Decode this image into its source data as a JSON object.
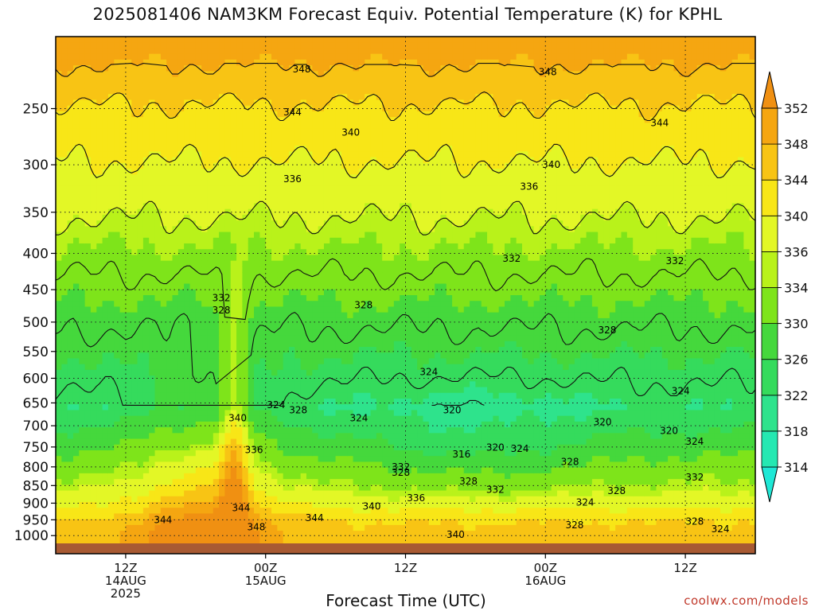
{
  "chart_data": {
    "type": "heatmap",
    "title": "2025081406 NAM3KM Forecast Equiv. Potential Temperature (K) for KPHL",
    "xlabel": "Forecast Time (UTC)",
    "ylabel": "",
    "credit": "coolwx.com/models",
    "x_ticks": [
      {
        "hours": 6,
        "lines": [
          "12Z",
          "14AUG",
          "2025"
        ]
      },
      {
        "hours": 18,
        "lines": [
          "00Z",
          "15AUG"
        ]
      },
      {
        "hours": 30,
        "lines": [
          "12Z"
        ]
      },
      {
        "hours": 42,
        "lines": [
          "00Z",
          "16AUG"
        ]
      },
      {
        "hours": 54,
        "lines": [
          "12Z"
        ]
      }
    ],
    "xlim": [
      0,
      60
    ],
    "y_ticks": [
      250,
      300,
      350,
      400,
      450,
      500,
      550,
      600,
      650,
      700,
      750,
      800,
      850,
      900,
      950,
      1000
    ],
    "ylim": [
      1015,
      210
    ],
    "y_scale": "log-pressure",
    "colorbar": {
      "ticks": [
        314,
        318,
        322,
        326,
        330,
        334,
        336,
        340,
        344,
        348,
        352
      ],
      "colors": [
        "#1fe8d6",
        "#25e8b2",
        "#2ee38c",
        "#35db5c",
        "#45d83c",
        "#7ee41a",
        "#b9f21a",
        "#e3f726",
        "#f8e617",
        "#f8c414",
        "#f5a611",
        "#f09012"
      ],
      "extend": "both"
    },
    "contour_labels": [
      {
        "t": 21.1,
        "p": 220,
        "v": "348"
      },
      {
        "t": 42.2,
        "p": 222,
        "v": "348"
      },
      {
        "t": 20.3,
        "p": 253,
        "v": "344"
      },
      {
        "t": 51.8,
        "p": 262,
        "v": "344"
      },
      {
        "t": 25.3,
        "p": 270,
        "v": "340"
      },
      {
        "t": 42.5,
        "p": 300,
        "v": "340"
      },
      {
        "t": 20.3,
        "p": 314,
        "v": "336"
      },
      {
        "t": 40.6,
        "p": 322,
        "v": "336"
      },
      {
        "t": 39.1,
        "p": 407,
        "v": "332"
      },
      {
        "t": 53.1,
        "p": 410,
        "v": "332"
      },
      {
        "t": 14.2,
        "p": 462,
        "v": "332"
      },
      {
        "t": 14.2,
        "p": 481,
        "v": "328"
      },
      {
        "t": 26.4,
        "p": 473,
        "v": "328"
      },
      {
        "t": 47.3,
        "p": 513,
        "v": "328"
      },
      {
        "t": 32.0,
        "p": 588,
        "v": "324"
      },
      {
        "t": 53.6,
        "p": 625,
        "v": "324"
      },
      {
        "t": 18.9,
        "p": 654,
        "v": "324"
      },
      {
        "t": 20.8,
        "p": 665,
        "v": "328"
      },
      {
        "t": 26.0,
        "p": 683,
        "v": "324"
      },
      {
        "t": 34.0,
        "p": 665,
        "v": "320"
      },
      {
        "t": 46.9,
        "p": 692,
        "v": "320"
      },
      {
        "t": 52.6,
        "p": 712,
        "v": "320"
      },
      {
        "t": 54.8,
        "p": 737,
        "v": "324"
      },
      {
        "t": 15.6,
        "p": 683,
        "v": "340"
      },
      {
        "t": 17.0,
        "p": 757,
        "v": "336"
      },
      {
        "t": 34.8,
        "p": 768,
        "v": "316"
      },
      {
        "t": 37.7,
        "p": 751,
        "v": "320"
      },
      {
        "t": 39.8,
        "p": 754,
        "v": "324"
      },
      {
        "t": 44.1,
        "p": 787,
        "v": "328"
      },
      {
        "t": 29.6,
        "p": 800,
        "v": "332"
      },
      {
        "t": 29.6,
        "p": 815,
        "v": "328"
      },
      {
        "t": 35.4,
        "p": 838,
        "v": "328"
      },
      {
        "t": 37.7,
        "p": 862,
        "v": "332"
      },
      {
        "t": 54.8,
        "p": 828,
        "v": "332"
      },
      {
        "t": 48.1,
        "p": 865,
        "v": "328"
      },
      {
        "t": 30.9,
        "p": 885,
        "v": "336"
      },
      {
        "t": 45.4,
        "p": 898,
        "v": "324"
      },
      {
        "t": 15.9,
        "p": 914,
        "v": "344"
      },
      {
        "t": 27.1,
        "p": 909,
        "v": "340"
      },
      {
        "t": 22.2,
        "p": 944,
        "v": "344"
      },
      {
        "t": 9.2,
        "p": 950,
        "v": "344"
      },
      {
        "t": 44.5,
        "p": 966,
        "v": "328"
      },
      {
        "t": 54.8,
        "p": 955,
        "v": "328"
      },
      {
        "t": 57.0,
        "p": 979,
        "v": "324"
      },
      {
        "t": 17.2,
        "p": 973,
        "v": "348"
      },
      {
        "t": 34.3,
        "p": 997,
        "v": "340"
      }
    ]
  }
}
